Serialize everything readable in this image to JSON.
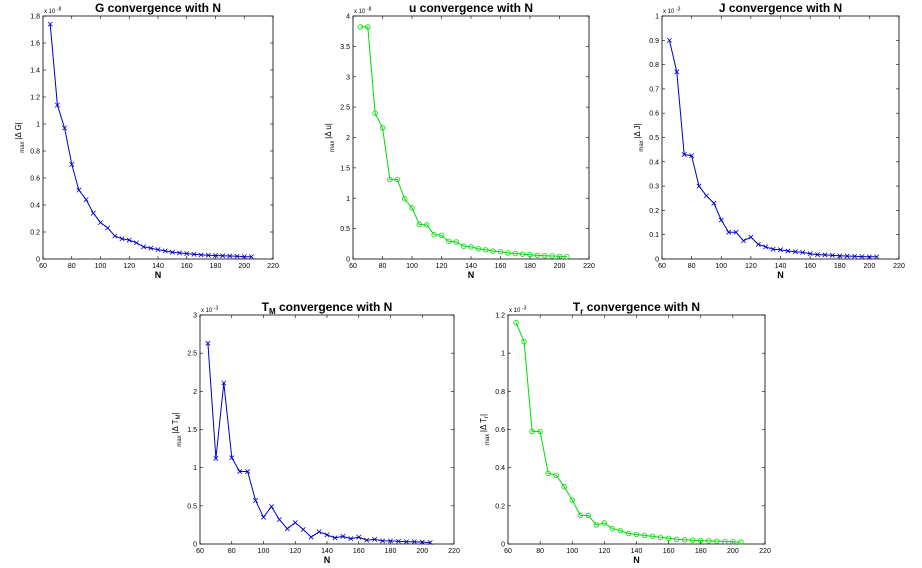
{
  "chart_data": [
    {
      "type": "line",
      "title": "G convergence with N",
      "title_sub": "",
      "title_rest": "",
      "xlabel": "N",
      "ylabel": {
        "prefix": "max",
        "main": "|Δ G|",
        "sub": "",
        "end": ""
      },
      "exponent": "x 10",
      "exponent_power": "-8",
      "xlim": [
        60,
        220
      ],
      "xticks": [
        "60",
        "80",
        "100",
        "120",
        "140",
        "160",
        "180",
        "200",
        "220"
      ],
      "ylim": [
        0,
        1.8
      ],
      "yticks": [
        "0",
        "0.2",
        "0.4",
        "0.6",
        "0.8",
        "1",
        "1.2",
        "1.4",
        "1.6",
        "1.8"
      ],
      "color": "#0000cc",
      "marker": "x",
      "x": [
        65,
        70,
        75,
        80,
        85,
        90,
        95,
        100,
        105,
        110,
        115,
        120,
        125,
        130,
        135,
        140,
        145,
        150,
        155,
        160,
        165,
        170,
        175,
        180,
        185,
        190,
        195,
        200,
        205
      ],
      "y": [
        1.74,
        1.14,
        0.97,
        0.7,
        0.51,
        0.44,
        0.34,
        0.27,
        0.23,
        0.17,
        0.15,
        0.14,
        0.12,
        0.09,
        0.08,
        0.07,
        0.06,
        0.05,
        0.045,
        0.04,
        0.035,
        0.03,
        0.028,
        0.026,
        0.024,
        0.022,
        0.02,
        0.018,
        0.017
      ]
    },
    {
      "type": "line",
      "title": "u convergence with N",
      "title_sub": "",
      "title_rest": "",
      "xlabel": "N",
      "ylabel": {
        "prefix": "max",
        "main": "|Δ u|",
        "sub": "",
        "end": ""
      },
      "exponent": "x 10",
      "exponent_power": "-8",
      "xlim": [
        60,
        220
      ],
      "xticks": [
        "60",
        "80",
        "100",
        "120",
        "140",
        "160",
        "180",
        "200",
        "220"
      ],
      "ylim": [
        0,
        4
      ],
      "yticks": [
        "0",
        "0.5",
        "1",
        "1.5",
        "2",
        "2.5",
        "3",
        "3.5",
        "4"
      ],
      "color": "#00dd00",
      "marker": "o",
      "x": [
        65,
        70,
        75,
        80,
        85,
        90,
        95,
        100,
        105,
        110,
        115,
        120,
        125,
        130,
        135,
        140,
        145,
        150,
        155,
        160,
        165,
        170,
        175,
        180,
        185,
        190,
        195,
        200,
        205
      ],
      "y": [
        3.82,
        3.82,
        2.4,
        2.16,
        1.31,
        1.31,
        0.99,
        0.84,
        0.57,
        0.56,
        0.4,
        0.39,
        0.29,
        0.28,
        0.21,
        0.2,
        0.17,
        0.15,
        0.13,
        0.12,
        0.1,
        0.09,
        0.08,
        0.07,
        0.06,
        0.055,
        0.05,
        0.045,
        0.04
      ]
    },
    {
      "type": "line",
      "title": "J convergence with N",
      "title_sub": "",
      "title_rest": "",
      "xlabel": "N",
      "ylabel": {
        "prefix": "max",
        "main": "|Δ J|",
        "sub": "",
        "end": ""
      },
      "exponent": "x 10",
      "exponent_power": "-3",
      "xlim": [
        60,
        220
      ],
      "xticks": [
        "60",
        "80",
        "100",
        "120",
        "140",
        "160",
        "180",
        "200",
        "220"
      ],
      "ylim": [
        0,
        1
      ],
      "yticks": [
        "0",
        "0.1",
        "0.2",
        "0.3",
        "0.4",
        "0.5",
        "0.6",
        "0.7",
        "0.8",
        "0.9",
        "1"
      ],
      "color": "#0000cc",
      "marker": "x",
      "x": [
        65,
        70,
        75,
        80,
        85,
        90,
        95,
        100,
        105,
        110,
        115,
        120,
        125,
        130,
        135,
        140,
        145,
        150,
        155,
        160,
        165,
        170,
        175,
        180,
        185,
        190,
        195,
        200,
        205
      ],
      "y": [
        0.9,
        0.77,
        0.43,
        0.425,
        0.3,
        0.26,
        0.23,
        0.16,
        0.11,
        0.11,
        0.075,
        0.09,
        0.06,
        0.05,
        0.04,
        0.038,
        0.033,
        0.03,
        0.027,
        0.022,
        0.018,
        0.017,
        0.015,
        0.013,
        0.012,
        0.011,
        0.01,
        0.009,
        0.009
      ]
    },
    {
      "type": "line",
      "title": "T",
      "title_sub": "M",
      "title_rest": " convergence with N",
      "xlabel": "N",
      "ylabel": {
        "prefix": "max",
        "main": "|Δ T",
        "sub": "M",
        "end": "|"
      },
      "exponent": "x 10",
      "exponent_power": "-3",
      "xlim": [
        60,
        220
      ],
      "xticks": [
        "60",
        "80",
        "100",
        "120",
        "140",
        "160",
        "180",
        "200",
        "220"
      ],
      "ylim": [
        0,
        3
      ],
      "yticks": [
        "0",
        "0.5",
        "1",
        "1.5",
        "2",
        "2.5",
        "3"
      ],
      "color": "#0000cc",
      "marker": "x",
      "x": [
        65,
        70,
        75,
        80,
        85,
        90,
        95,
        100,
        105,
        110,
        115,
        120,
        125,
        130,
        135,
        140,
        145,
        150,
        155,
        160,
        165,
        170,
        175,
        180,
        185,
        190,
        195,
        200,
        205
      ],
      "y": [
        2.63,
        1.12,
        2.11,
        1.13,
        0.95,
        0.95,
        0.57,
        0.35,
        0.49,
        0.32,
        0.2,
        0.28,
        0.19,
        0.09,
        0.16,
        0.12,
        0.08,
        0.1,
        0.07,
        0.09,
        0.05,
        0.06,
        0.04,
        0.04,
        0.035,
        0.03,
        0.03,
        0.025,
        0.02
      ]
    },
    {
      "type": "line",
      "title": "T",
      "title_sub": "r",
      "title_rest": " convergence with N",
      "xlabel": "N",
      "ylabel": {
        "prefix": "max",
        "main": "|Δ T",
        "sub": "r",
        "end": "|"
      },
      "exponent": "x 10",
      "exponent_power": "-3",
      "xlim": [
        60,
        220
      ],
      "xticks": [
        "60",
        "80",
        "100",
        "120",
        "140",
        "160",
        "180",
        "200",
        "220"
      ],
      "ylim": [
        0,
        1.2
      ],
      "yticks": [
        "0",
        "0.2",
        "0.4",
        "0.6",
        "0.8",
        "1",
        "1.2"
      ],
      "color": "#00dd00",
      "marker": "o",
      "x": [
        65,
        70,
        75,
        80,
        85,
        90,
        95,
        100,
        105,
        110,
        115,
        120,
        125,
        130,
        135,
        140,
        145,
        150,
        155,
        160,
        165,
        170,
        175,
        180,
        185,
        190,
        195,
        200,
        205
      ],
      "y": [
        1.16,
        1.06,
        0.59,
        0.59,
        0.37,
        0.36,
        0.3,
        0.23,
        0.15,
        0.15,
        0.1,
        0.11,
        0.08,
        0.07,
        0.055,
        0.05,
        0.045,
        0.04,
        0.035,
        0.03,
        0.025,
        0.022,
        0.02,
        0.018,
        0.016,
        0.015,
        0.013,
        0.012,
        0.01
      ]
    }
  ]
}
